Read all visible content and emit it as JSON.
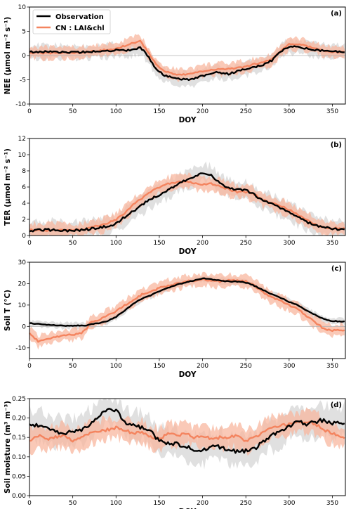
{
  "colors": {
    "observation": "#000000",
    "model": "#f4845f",
    "model_band": "#f8b79f",
    "obs_band": "#d8d8d8",
    "zero_line": "#b0b0b0"
  },
  "legend": {
    "observation": "Observation",
    "model": "CN : LAI&chl",
    "placement": "top-left"
  },
  "chart_data": [
    {
      "type": "line",
      "panel_label": "(a)",
      "ylabel": "NEE (μmol m⁻² s⁻¹)",
      "xlabel": "DOY",
      "xlim": [
        0,
        365
      ],
      "ylim": [
        -10,
        10
      ],
      "xticks": [
        0,
        50,
        100,
        150,
        200,
        250,
        300,
        350
      ],
      "yticks": [
        -10,
        -5,
        0,
        5,
        10
      ],
      "zero_line": true,
      "x": [
        0,
        20,
        40,
        60,
        80,
        100,
        110,
        120,
        128,
        135,
        145,
        155,
        165,
        175,
        185,
        200,
        215,
        230,
        245,
        260,
        270,
        280,
        290,
        300,
        315,
        330,
        345,
        365
      ],
      "series": [
        {
          "name": "Observation",
          "values": [
            0.7,
            0.8,
            0.7,
            0.7,
            0.9,
            1.1,
            1.0,
            1.3,
            1.6,
            0.4,
            -2.5,
            -4.0,
            -4.5,
            -4.8,
            -5.0,
            -4.2,
            -3.5,
            -3.8,
            -3.0,
            -2.4,
            -1.9,
            -1.0,
            0.8,
            1.9,
            1.6,
            1.2,
            0.9,
            0.8
          ],
          "spread": 1.5
        },
        {
          "name": "CN : LAI&chl",
          "values": [
            0.6,
            0.5,
            0.6,
            0.6,
            1.0,
            1.4,
            2.0,
            2.6,
            3.0,
            1.2,
            -1.5,
            -3.2,
            -3.7,
            -4.0,
            -3.8,
            -3.2,
            -2.8,
            -2.8,
            -2.4,
            -1.8,
            -1.4,
            -0.8,
            0.9,
            2.4,
            2.2,
            1.5,
            0.7,
            0.7
          ],
          "spread": 1.3
        }
      ]
    },
    {
      "type": "line",
      "panel_label": "(b)",
      "ylabel": "TER (μmol m⁻² s⁻¹)",
      "xlabel": "DOY",
      "xlim": [
        0,
        365
      ],
      "ylim": [
        0,
        12
      ],
      "xticks": [
        0,
        50,
        100,
        150,
        200,
        250,
        300,
        350
      ],
      "yticks": [
        0,
        2,
        4,
        6,
        8,
        10,
        12
      ],
      "zero_line": false,
      "x": [
        0,
        20,
        40,
        60,
        70,
        80,
        90,
        100,
        110,
        120,
        130,
        140,
        150,
        160,
        170,
        180,
        190,
        200,
        210,
        220,
        230,
        240,
        250,
        260,
        270,
        280,
        290,
        300,
        310,
        320,
        330,
        340,
        350,
        365
      ],
      "series": [
        {
          "name": "Observation",
          "values": [
            0.6,
            0.7,
            0.6,
            0.7,
            0.8,
            1.0,
            1.1,
            1.5,
            2.3,
            3.0,
            3.8,
            4.5,
            5.0,
            5.6,
            6.3,
            6.8,
            7.2,
            7.8,
            7.5,
            6.5,
            5.8,
            5.7,
            5.7,
            5.0,
            4.3,
            3.9,
            3.4,
            2.9,
            2.3,
            1.7,
            1.3,
            1.0,
            0.8,
            0.7
          ],
          "spread": 1.2
        },
        {
          "name": "CN : LAI&chl",
          "values": [
            0.7,
            0.6,
            0.7,
            0.7,
            1.0,
            1.2,
            1.5,
            2.0,
            2.8,
            3.8,
            4.6,
            5.4,
            6.0,
            6.4,
            6.6,
            6.7,
            6.5,
            6.3,
            6.4,
            6.1,
            5.7,
            5.4,
            5.4,
            5.1,
            4.4,
            4.0,
            3.7,
            3.2,
            2.6,
            2.0,
            1.4,
            1.0,
            0.9,
            0.9
          ],
          "spread": 0.9
        }
      ]
    },
    {
      "type": "line",
      "panel_label": "(c)",
      "ylabel": "Soil T (°C)",
      "xlabel": "DOY",
      "xlim": [
        0,
        365
      ],
      "ylim": [
        -15,
        30
      ],
      "xticks": [
        0,
        50,
        100,
        150,
        200,
        250,
        300,
        350
      ],
      "yticks": [
        -10,
        0,
        10,
        20,
        30
      ],
      "zero_line": true,
      "x": [
        0,
        10,
        20,
        30,
        40,
        50,
        60,
        66,
        70,
        80,
        90,
        100,
        110,
        120,
        130,
        140,
        150,
        160,
        170,
        180,
        190,
        200,
        210,
        220,
        230,
        240,
        250,
        260,
        270,
        280,
        290,
        300,
        310,
        320,
        330,
        340,
        350,
        365
      ],
      "series": [
        {
          "name": "Observation",
          "values": [
            1.5,
            1.2,
            0.8,
            0.5,
            0.4,
            0.4,
            0.4,
            0.5,
            1.0,
            1.5,
            2.5,
            4.5,
            7.5,
            10.5,
            13.0,
            14.5,
            16.5,
            18.0,
            19.5,
            20.5,
            21.5,
            22.5,
            22.0,
            21.5,
            21.0,
            21.0,
            20.5,
            19.0,
            17.0,
            15.0,
            13.5,
            11.5,
            10.0,
            7.5,
            5.5,
            3.5,
            2.5,
            2.3
          ],
          "spread": 1.5
        },
        {
          "name": "CN : LAI&chl",
          "values": [
            -3,
            -7,
            -6,
            -5,
            -4,
            -4,
            -3,
            -1,
            2,
            3,
            5,
            7,
            10,
            12,
            15,
            16,
            18,
            19,
            20,
            21,
            21.5,
            22,
            21.5,
            21,
            21.5,
            21.5,
            21,
            19,
            16,
            13.5,
            12,
            10,
            8,
            5,
            2,
            -1,
            -2,
            -1.5
          ],
          "spread": 3.0
        }
      ]
    },
    {
      "type": "line",
      "panel_label": "(d)",
      "ylabel": "Soil moisture (m³ m⁻³)",
      "xlabel": "DOY",
      "xlim": [
        0,
        365
      ],
      "ylim": [
        0,
        0.25
      ],
      "xticks": [
        0,
        50,
        100,
        150,
        200,
        250,
        300,
        350
      ],
      "yticks": [
        0.0,
        0.05,
        0.1,
        0.15,
        0.2,
        0.25
      ],
      "zero_line": false,
      "x": [
        0,
        10,
        20,
        30,
        40,
        50,
        60,
        70,
        80,
        90,
        100,
        110,
        120,
        130,
        140,
        150,
        160,
        170,
        180,
        190,
        200,
        210,
        220,
        230,
        240,
        250,
        260,
        270,
        280,
        290,
        300,
        310,
        320,
        330,
        340,
        350,
        365
      ],
      "series": [
        {
          "name": "Observation",
          "values": [
            0.185,
            0.18,
            0.175,
            0.165,
            0.16,
            0.165,
            0.17,
            0.185,
            0.205,
            0.22,
            0.22,
            0.19,
            0.18,
            0.175,
            0.165,
            0.14,
            0.135,
            0.135,
            0.125,
            0.12,
            0.115,
            0.13,
            0.125,
            0.115,
            0.115,
            0.115,
            0.12,
            0.14,
            0.155,
            0.165,
            0.18,
            0.19,
            0.185,
            0.19,
            0.195,
            0.185,
            0.19
          ],
          "spread": 0.04
        },
        {
          "name": "CN : LAI&chl",
          "values": [
            0.14,
            0.155,
            0.145,
            0.15,
            0.155,
            0.14,
            0.15,
            0.16,
            0.165,
            0.17,
            0.175,
            0.17,
            0.16,
            0.165,
            0.15,
            0.145,
            0.16,
            0.155,
            0.16,
            0.15,
            0.155,
            0.145,
            0.15,
            0.15,
            0.155,
            0.14,
            0.15,
            0.165,
            0.175,
            0.18,
            0.185,
            0.19,
            0.19,
            0.185,
            0.17,
            0.16,
            0.15
          ],
          "spread": 0.03
        }
      ]
    }
  ]
}
